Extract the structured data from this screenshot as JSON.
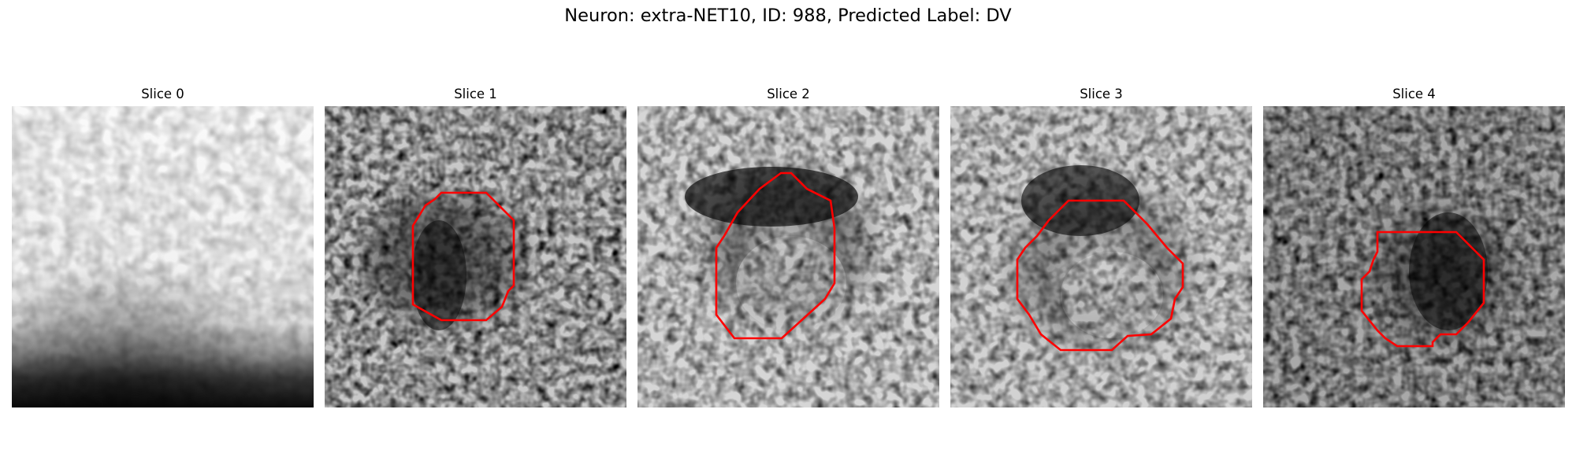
{
  "figure": {
    "title": "Neuron: extra-NET10, ID: 988, Predicted Label: DV"
  },
  "panels": [
    {
      "title": "Slice 0",
      "has_contour": false
    },
    {
      "title": "Slice 1",
      "has_contour": true
    },
    {
      "title": "Slice 2",
      "has_contour": true
    },
    {
      "title": "Slice 3",
      "has_contour": true
    },
    {
      "title": "Slice 4",
      "has_contour": true
    }
  ],
  "colors": {
    "contour": "#ff0000",
    "colormap": "grayscale (dark = high signal)"
  }
}
